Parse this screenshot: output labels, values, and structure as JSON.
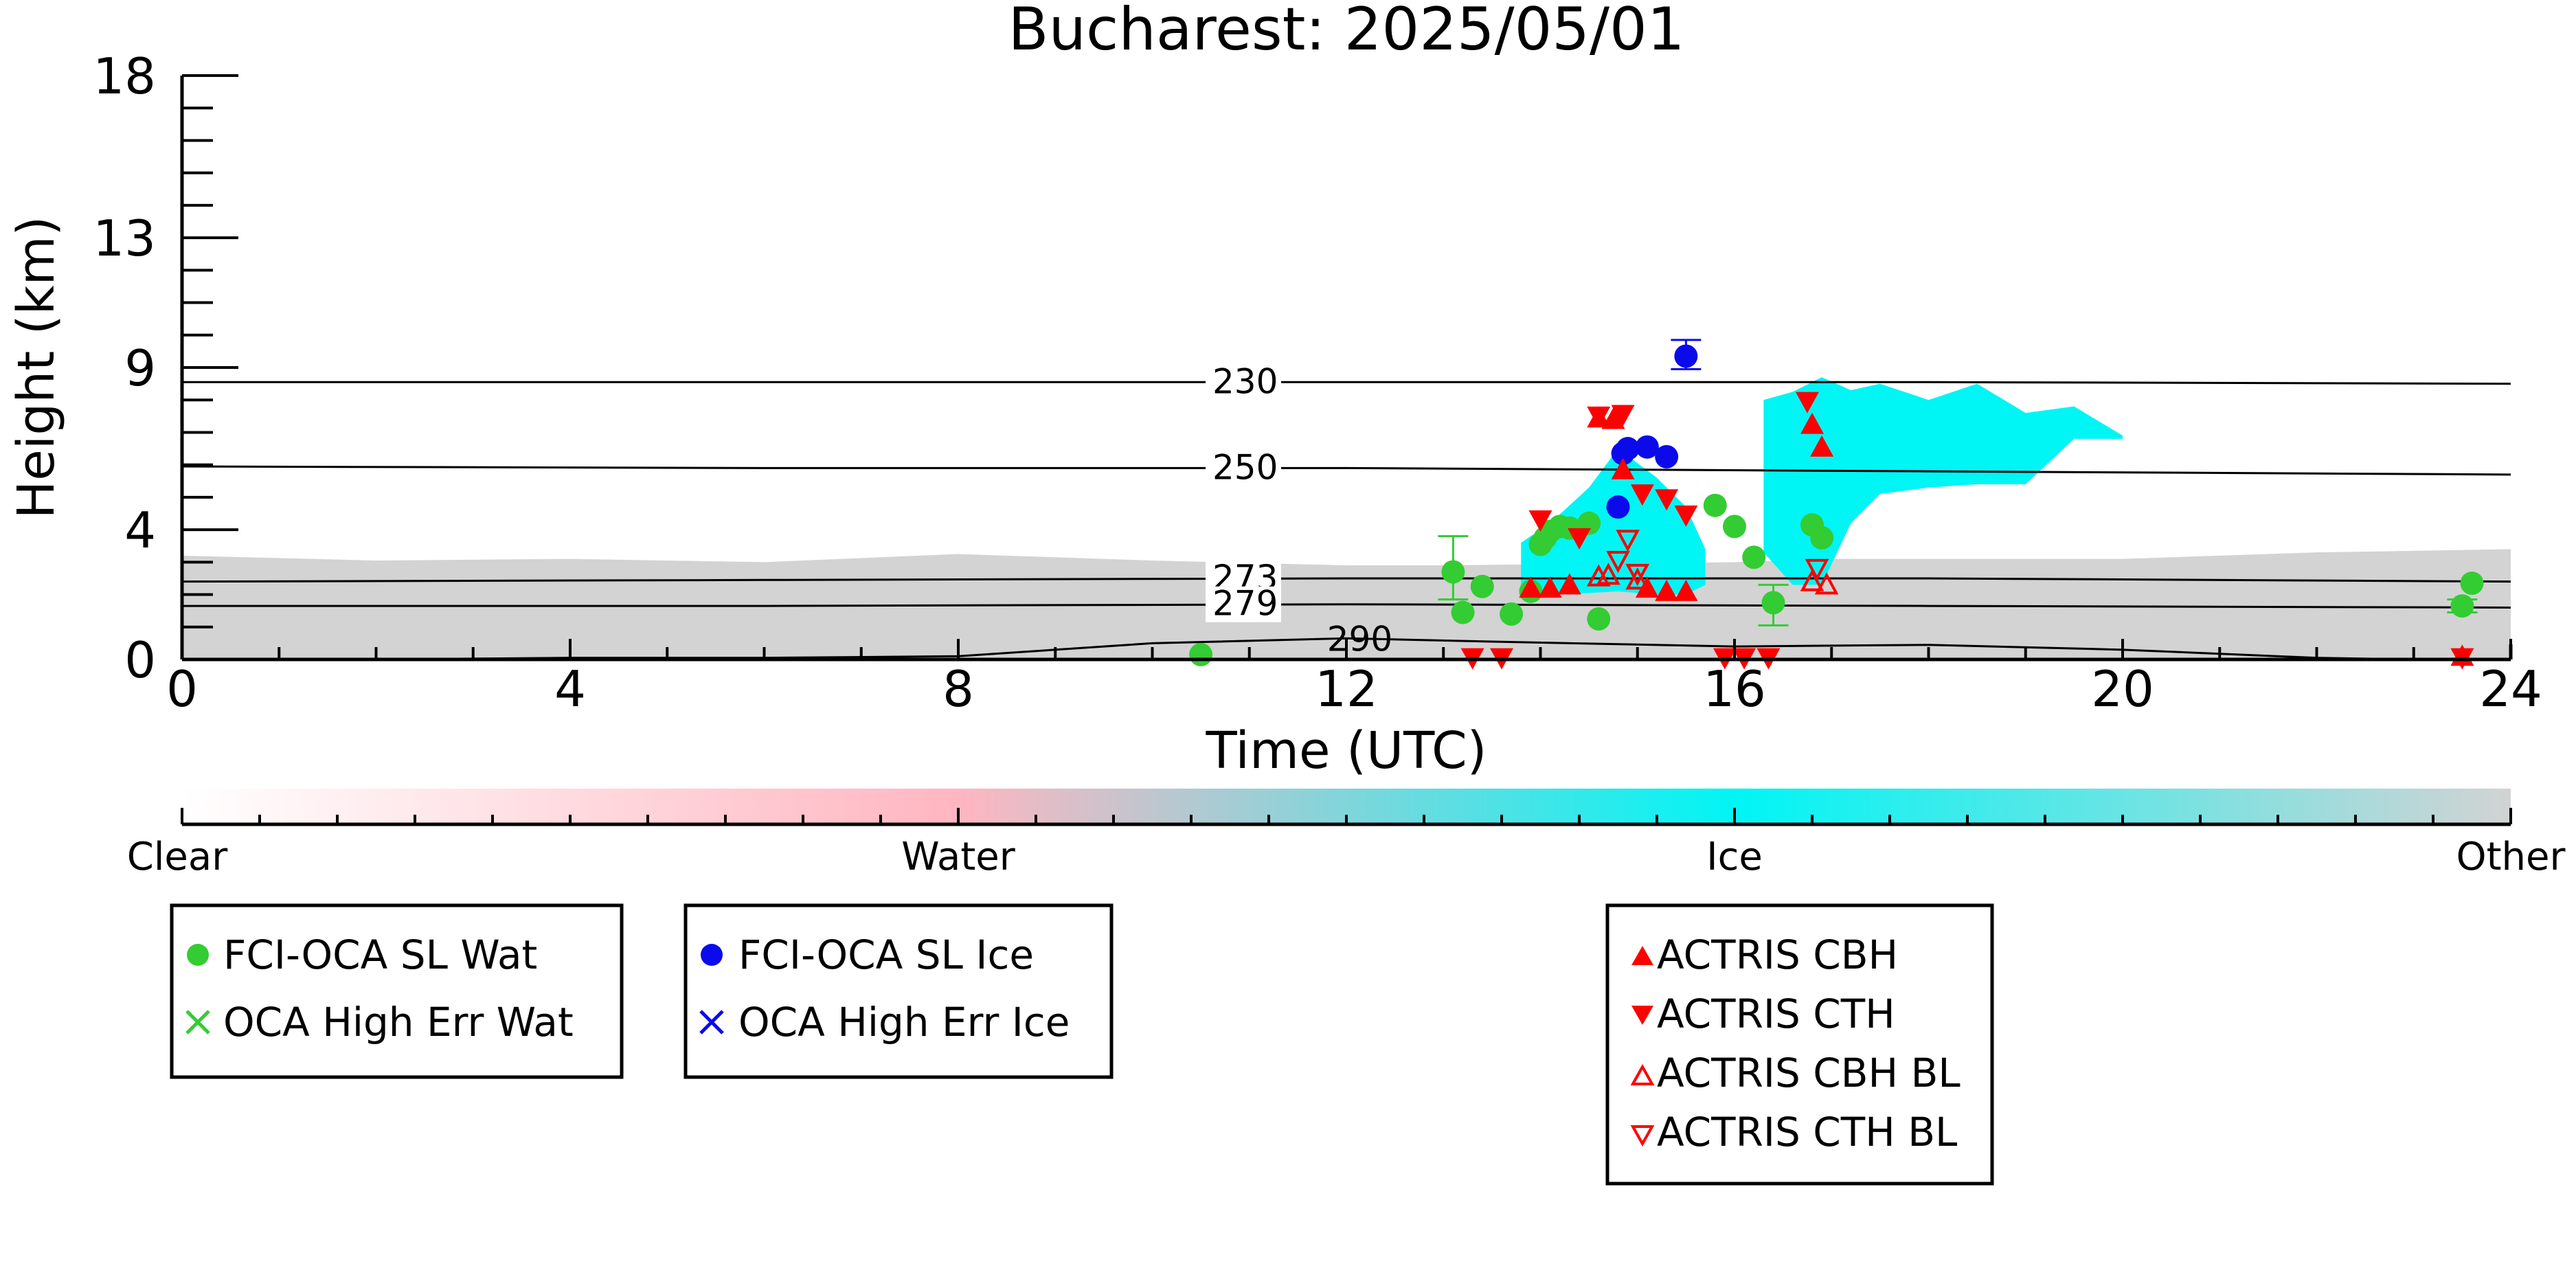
{
  "chart_data": {
    "type": "scatter",
    "title": "Bucharest: 2025/05/01",
    "xlabel": "Time (UTC)",
    "ylabel": "Height (km)",
    "xlim": [
      0,
      24
    ],
    "ylim": [
      0,
      18
    ],
    "xticks": [
      0,
      4,
      8,
      12,
      16,
      20,
      24
    ],
    "yticks": [
      0,
      4,
      9,
      13,
      18
    ],
    "xtick_labels": [
      "0",
      "4",
      "8",
      "12",
      "16",
      "20",
      "24"
    ],
    "ytick_labels": [
      "0",
      "4",
      "9",
      "13",
      "18"
    ],
    "colorbar": {
      "labels": [
        "Clear",
        "Water",
        "Ice",
        "Other"
      ],
      "colors": [
        "#ffffff",
        "#ffb6c1",
        "#00f5f5",
        "#d3d3d3"
      ]
    },
    "temperature_contours": [
      {
        "label": "230",
        "height": [
          8.55,
          8.55,
          8.55,
          8.55,
          8.5
        ]
      },
      {
        "label": "250",
        "height": [
          5.95,
          5.9,
          5.9,
          5.8,
          5.7
        ]
      },
      {
        "label": "273",
        "height": [
          2.4,
          2.45,
          2.5,
          2.5,
          2.4
        ]
      },
      {
        "label": "279",
        "height": [
          1.65,
          1.65,
          1.7,
          1.65,
          1.6
        ]
      },
      {
        "label": "290",
        "times": [
          2,
          4,
          6,
          8,
          10,
          12,
          13.5,
          16,
          18,
          20,
          22,
          23
        ],
        "height": [
          0,
          0.05,
          0.05,
          0.1,
          0.5,
          0.65,
          0.55,
          0.4,
          0.45,
          0.3,
          0.05,
          0
        ]
      }
    ],
    "contour_times": [
      0,
      6,
      12,
      18,
      24
    ],
    "series": [
      {
        "name": "FCI-OCA SL Wat",
        "color": "#33cc33",
        "marker": "circle",
        "x": [
          10.5,
          13.1,
          13.2,
          13.4,
          13.7,
          13.9,
          14.0,
          14.05,
          14.1,
          14.2,
          14.3,
          14.5,
          14.6,
          15.8,
          16.0,
          16.2,
          16.4,
          16.8,
          16.9,
          23.5,
          23.6
        ],
        "y": [
          0.15,
          2.7,
          1.45,
          2.25,
          1.4,
          2.1,
          3.55,
          3.75,
          3.95,
          4.1,
          4.05,
          4.2,
          1.25,
          4.75,
          4.1,
          3.15,
          1.75,
          4.15,
          3.75,
          1.65,
          2.35
        ]
      },
      {
        "name": "OCA High Err Wat",
        "color": "#33cc33",
        "marker": "x",
        "x": [],
        "y": []
      },
      {
        "name": "FCI-OCA SL Ice",
        "color": "#0a0aeb",
        "marker": "circle",
        "x": [
          15.5,
          14.85,
          14.9,
          15.1,
          15.3,
          14.8
        ],
        "y": [
          9.35,
          6.35,
          6.5,
          6.55,
          6.25,
          4.7
        ]
      },
      {
        "name": "OCA High Err Ice",
        "color": "#0a0aeb",
        "marker": "x",
        "x": [],
        "y": []
      },
      {
        "name": "ACTRIS CBH",
        "color": "#ff0000",
        "marker": "triangle-up",
        "x": [
          13.9,
          14.1,
          14.3,
          14.6,
          14.75,
          14.85,
          15.1,
          15.3,
          15.5,
          16.8,
          16.9,
          23.5
        ],
        "y": [
          2.2,
          2.2,
          2.3,
          7.45,
          7.4,
          5.85,
          2.2,
          2.1,
          2.1,
          7.25,
          6.55,
          0.1
        ]
      },
      {
        "name": "ACTRIS CTH",
        "color": "#ff0000",
        "marker": "triangle-down",
        "x": [
          13.3,
          13.6,
          14.0,
          14.4,
          14.6,
          14.85,
          15.05,
          15.3,
          15.5,
          15.9,
          16.1,
          16.35,
          16.75,
          23.5
        ],
        "y": [
          0.05,
          0.05,
          4.3,
          3.75,
          7.5,
          7.55,
          5.1,
          4.95,
          4.45,
          0.05,
          0.05,
          0.05,
          7.95,
          0.05
        ]
      },
      {
        "name": "ACTRIS CBH BL",
        "color": "#ff0000",
        "marker": "triangle-up-open",
        "x": [
          14.6,
          14.7,
          15.0,
          16.8,
          16.95
        ],
        "y": [
          2.55,
          2.6,
          2.45,
          2.4,
          2.3
        ]
      },
      {
        "name": "ACTRIS CTH BL",
        "color": "#ff0000",
        "marker": "triangle-down-open",
        "x": [
          14.8,
          14.9,
          15.0,
          16.85
        ],
        "y": [
          3.05,
          3.7,
          2.65,
          2.8
        ]
      }
    ],
    "error_bars": [
      {
        "series": "FCI-OCA SL Wat",
        "x": 13.1,
        "y": 2.7,
        "low": 1.85,
        "high": 3.8
      },
      {
        "series": "FCI-OCA SL Wat",
        "x": 16.4,
        "y": 1.75,
        "low": 1.05,
        "high": 2.3
      },
      {
        "series": "FCI-OCA SL Wat",
        "x": 23.5,
        "y": 1.65,
        "low": 1.45,
        "high": 1.85
      },
      {
        "series": "FCI-OCA SL Ice",
        "x": 15.5,
        "y": 9.35,
        "low": 8.95,
        "high": 9.85
      }
    ],
    "legend": [
      {
        "placement": "below-left",
        "entries": [
          "FCI-OCA SL Wat",
          "OCA High Err Wat"
        ]
      },
      {
        "placement": "below-center-left",
        "entries": [
          "FCI-OCA SL Ice",
          "OCA High Err Ice"
        ]
      },
      {
        "placement": "below-center-right",
        "entries": [
          "ACTRIS CBH",
          "ACTRIS CTH",
          "ACTRIS CBH BL",
          "ACTRIS CTH BL"
        ]
      }
    ],
    "background_fields": [
      {
        "class": "Other",
        "color": "#d3d3d3",
        "x": [
          0,
          2,
          4,
          6,
          8,
          10,
          12,
          13,
          16,
          17,
          20,
          22,
          24
        ],
        "top": [
          3.2,
          3.05,
          3.1,
          3.0,
          3.25,
          3.05,
          2.9,
          2.9,
          3.0,
          3.1,
          3.1,
          3.3,
          3.4
        ]
      },
      {
        "class": "Ice",
        "color": "#00f5f5",
        "x": [
          13.8,
          14.1,
          14.5,
          14.8,
          15.2,
          15.5,
          15.7
        ],
        "bottom": [
          2.1,
          2.0,
          2.05,
          2.1,
          2.0,
          2.0,
          2.3
        ],
        "top": [
          3.6,
          4.2,
          5.3,
          6.5,
          5.6,
          4.7,
          3.4
        ]
      },
      {
        "class": "Ice",
        "color": "#00f5f5",
        "x": [
          16.3,
          16.6,
          16.9,
          17.2,
          17.5,
          18.0,
          18.5,
          19.0,
          19.5,
          20.0
        ],
        "bottom": [
          3.3,
          2.3,
          2.3,
          4.2,
          5.1,
          5.3,
          5.4,
          5.4,
          6.8,
          6.8
        ],
        "top": [
          8.0,
          8.25,
          8.7,
          8.3,
          8.5,
          8.0,
          8.5,
          7.6,
          7.8,
          6.9
        ]
      }
    ]
  }
}
